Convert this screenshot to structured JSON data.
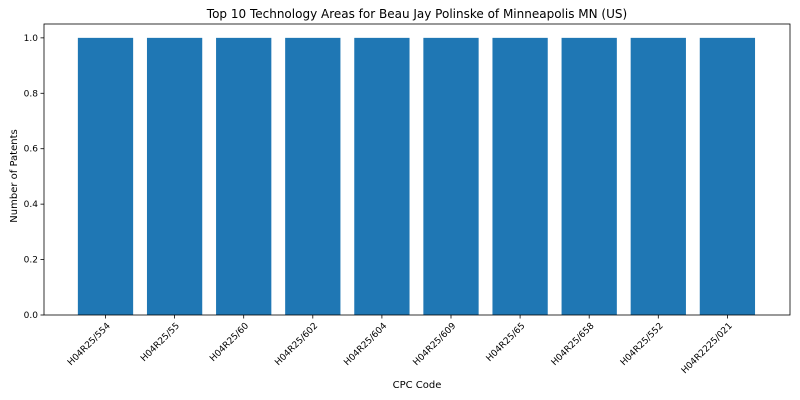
{
  "chart_data": {
    "type": "bar",
    "title": "Top 10 Technology Areas for Beau Jay Polinske of Minneapolis MN (US)",
    "xlabel": "CPC Code",
    "ylabel": "Number of Patents",
    "categories": [
      "H04R25/554",
      "H04R25/55",
      "H04R25/60",
      "H04R25/602",
      "H04R25/604",
      "H04R25/609",
      "H04R25/65",
      "H04R25/658",
      "H04R25/552",
      "H04R2225/021"
    ],
    "values": [
      1,
      1,
      1,
      1,
      1,
      1,
      1,
      1,
      1,
      1
    ],
    "ylim": [
      0,
      1.05
    ],
    "yticks": [
      "0.0",
      "0.2",
      "0.4",
      "0.6",
      "0.8",
      "1.0"
    ],
    "grid": false,
    "bar_color": "#1f77b4"
  }
}
